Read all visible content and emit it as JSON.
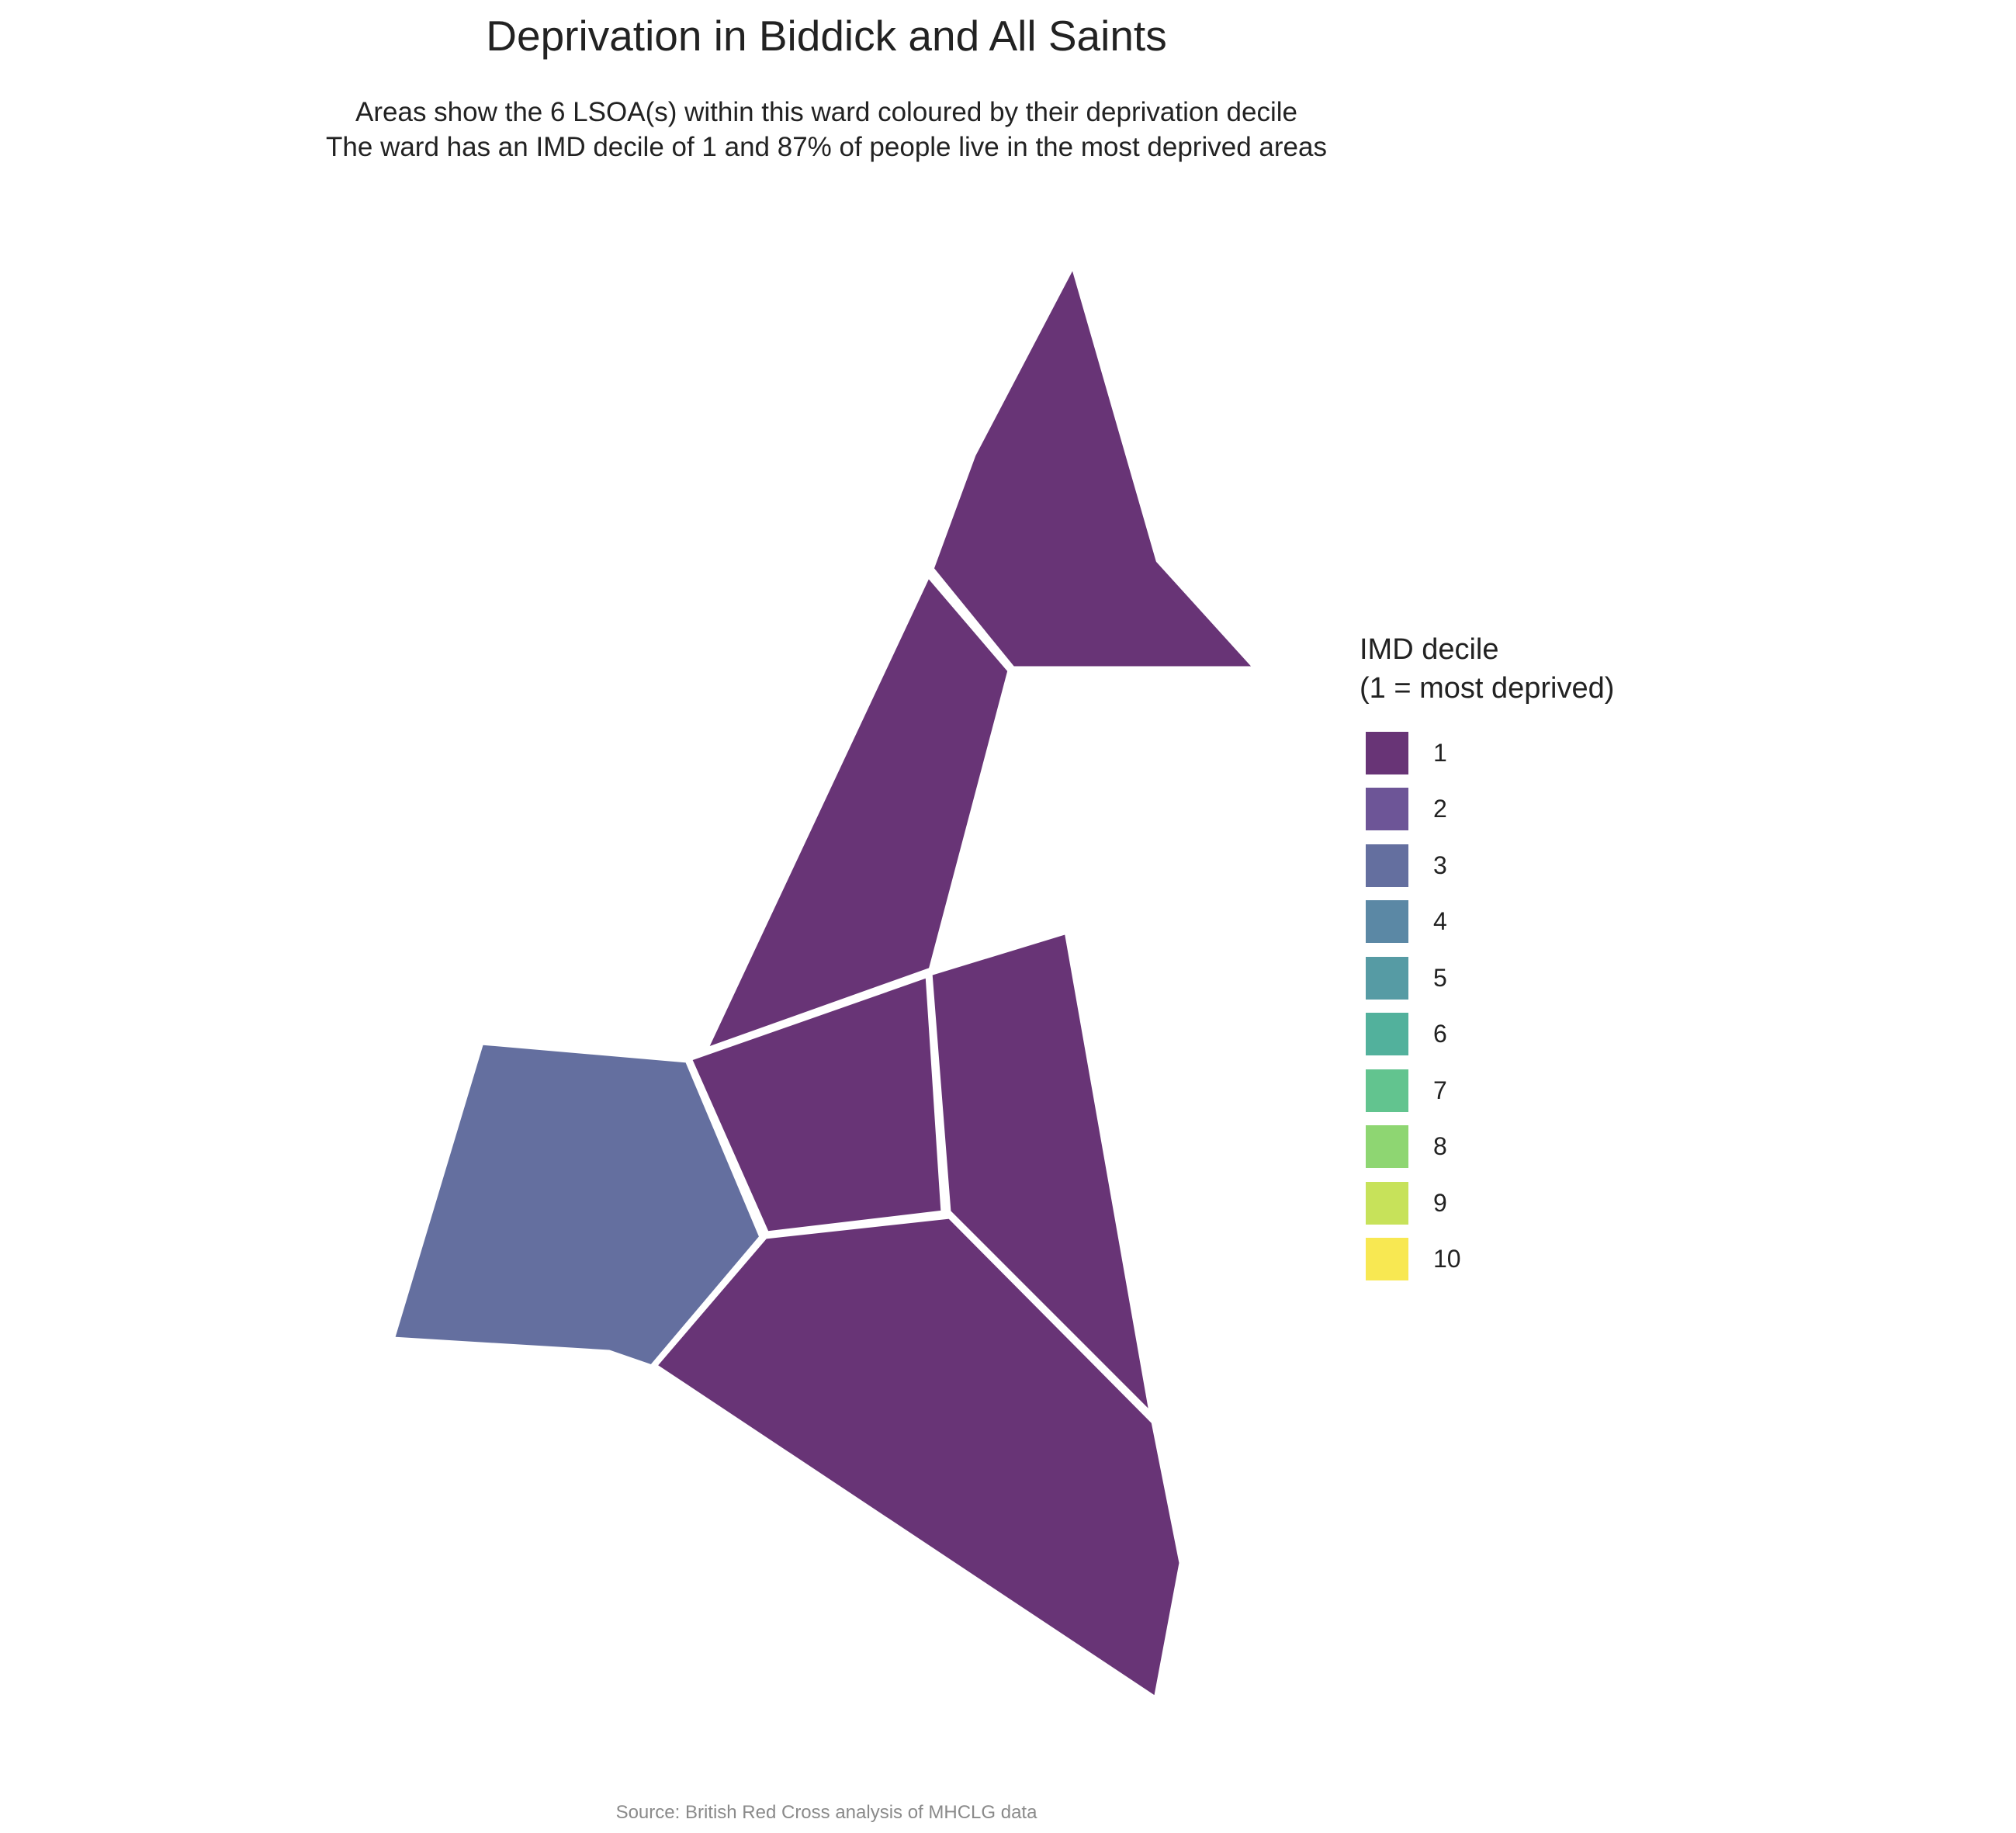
{
  "title": "Deprivation in Biddick and All Saints",
  "subtitle_line1": "Areas show the 6 LSOA(s) within this ward coloured by their deprivation decile",
  "subtitle_line2": "The ward has an IMD decile of 1 and 87% of people live in the most deprived areas",
  "source": "Source: British Red Cross analysis of MHCLG data",
  "legend": {
    "title_line1": "IMD decile",
    "title_line2": "(1 = most deprived)",
    "items": [
      {
        "label": "1",
        "color": "#683476"
      },
      {
        "label": "2",
        "color": "#6d5597"
      },
      {
        "label": "3",
        "color": "#646f9f"
      },
      {
        "label": "4",
        "color": "#5b88a5"
      },
      {
        "label": "5",
        "color": "#569ba4"
      },
      {
        "label": "6",
        "color": "#52b19c"
      },
      {
        "label": "7",
        "color": "#62c48f"
      },
      {
        "label": "8",
        "color": "#8ed672"
      },
      {
        "label": "9",
        "color": "#c7e25a"
      },
      {
        "label": "10",
        "color": "#f8e852"
      }
    ]
  },
  "areas": [
    {
      "name": "lsoa-north-tip",
      "decile": 1
    },
    {
      "name": "lsoa-north-strip",
      "decile": 1
    },
    {
      "name": "lsoa-centre",
      "decile": 1
    },
    {
      "name": "lsoa-east",
      "decile": 1
    },
    {
      "name": "lsoa-south",
      "decile": 1
    },
    {
      "name": "lsoa-west",
      "decile": 3
    }
  ]
}
